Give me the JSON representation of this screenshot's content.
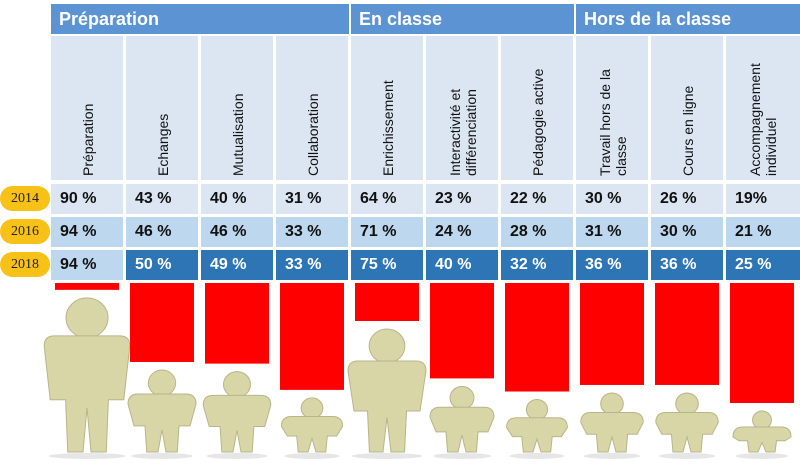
{
  "groups": [
    {
      "label": "Préparation"
    },
    {
      "label": "En classe"
    },
    {
      "label": "Hors de la classe"
    }
  ],
  "colors": {
    "header": "#5b93d3",
    "subheader": "#dce6f2",
    "row2014": "#dce6f2",
    "row2016": "#bdd7ee",
    "row2018": "#2e75b6",
    "year_badge": "#f7c118",
    "bars": "#ff0000",
    "figure": "#d8d5a7"
  },
  "chart_data": {
    "type": "table",
    "columns": [
      "Préparation",
      "Echanges",
      "Mutualisation",
      "Collaboration",
      "Enrichissement",
      "Interactivité et différenciation",
      "Pédagogie active",
      "Travail hors de la classe",
      "Cours en ligne",
      "Accompagnement individuel"
    ],
    "column_groups": [
      {
        "label": "Préparation",
        "columns": [
          "Préparation",
          "Echanges",
          "Mutualisation",
          "Collaboration"
        ]
      },
      {
        "label": "En classe",
        "columns": [
          "Enrichissement",
          "Interactivité et différenciation",
          "Pédagogie active"
        ]
      },
      {
        "label": "Hors de la classe",
        "columns": [
          "Travail hors de la classe",
          "Cours en ligne",
          "Accompagnement individuel"
        ]
      }
    ],
    "rows": [
      {
        "year": "2014",
        "values": [
          "90 %",
          "43 %",
          "40 %",
          "31 %",
          "64 %",
          "23 %",
          "22 %",
          "30 %",
          "26 %",
          "19%"
        ]
      },
      {
        "year": "2016",
        "values": [
          "94 %",
          "46 %",
          "46 %",
          "33 %",
          "71 %",
          "24 %",
          "28 %",
          "31 %",
          "30 %",
          "21 %"
        ]
      },
      {
        "year": "2018",
        "values": [
          "94 %",
          "50 %",
          "49 %",
          "33 %",
          "75 %",
          "40 %",
          "32 %",
          "36 %",
          "36 %",
          "25 %"
        ]
      }
    ],
    "figure_values_2018": [
      94,
      50,
      49,
      33,
      75,
      40,
      32,
      36,
      36,
      25
    ]
  }
}
